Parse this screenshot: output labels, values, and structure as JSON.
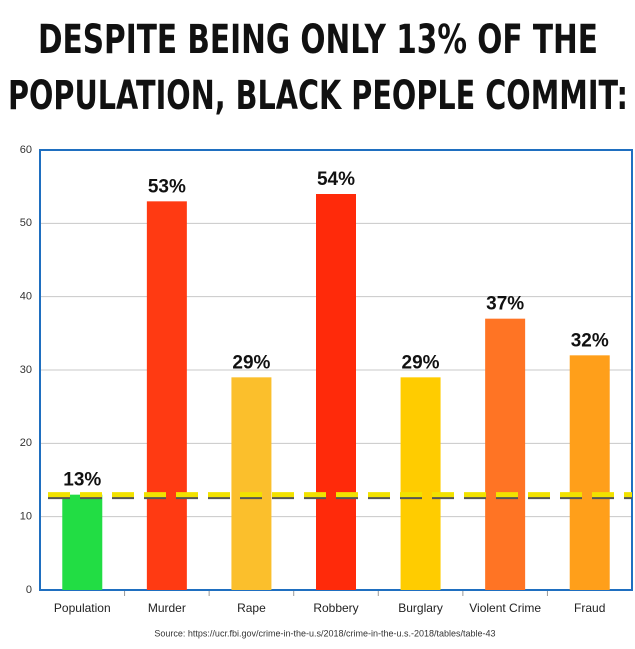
{
  "chart_data": {
    "type": "bar",
    "title": [
      "DESPITE BEING ONLY 13% OF THE",
      "POPULATION, BLACK PEOPLE COMMIT:"
    ],
    "categories": [
      "Population",
      "Murder",
      "Rape",
      "Robbery",
      "Burglary",
      "Violent Crime",
      "Fraud"
    ],
    "values": [
      13,
      53,
      29,
      54,
      29,
      37,
      32
    ],
    "value_labels": [
      "13%",
      "53%",
      "29%",
      "54%",
      "29%",
      "37%",
      "32%"
    ],
    "colors": [
      "#22dd44",
      "#ff3a12",
      "#fbbf2c",
      "#ff2a0a",
      "#ffcc00",
      "#ff7424",
      "#ff9f1a"
    ],
    "ylim": [
      0,
      60
    ],
    "yticks": [
      0,
      10,
      20,
      30,
      40,
      50,
      60
    ],
    "grid": true,
    "reference_line": {
      "value": 13,
      "color": "#f2e200"
    },
    "source": "Source: https://ucr.fbi.gov/crime-in-the-u.s/2018/crime-in-the-u.s.-2018/tables/table-43"
  }
}
